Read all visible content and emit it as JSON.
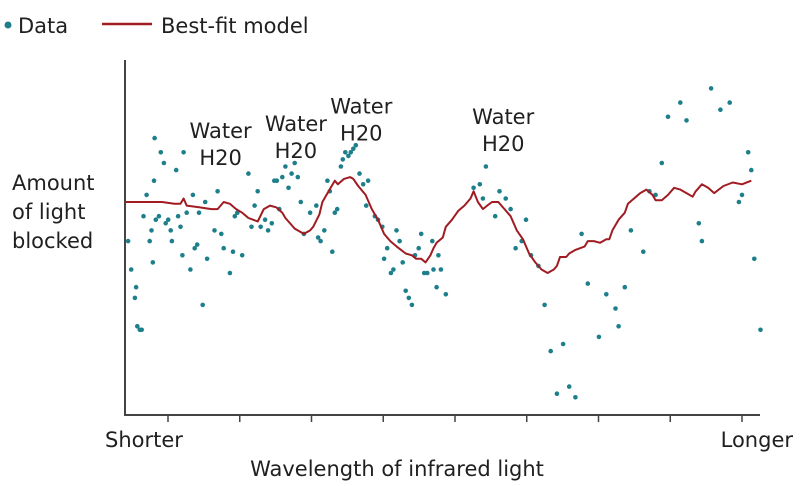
{
  "chart_data": {
    "type": "scatter",
    "title": "",
    "xlabel": "Wavelength of infrared light",
    "ylabel": [
      "Amount",
      "of light",
      "blocked"
    ],
    "x_tick_labels": {
      "start": "Shorter",
      "end": "Longer"
    },
    "xlim": [
      0,
      1
    ],
    "ylim": [
      0,
      1
    ],
    "x_tick_count": 9,
    "grid": false,
    "legend_position": "top-left",
    "legend": [
      {
        "name": "Data",
        "marker": "dot",
        "color": "#1e7f8c"
      },
      {
        "name": "Best-fit model",
        "marker": "line",
        "color": "#a01c22"
      }
    ],
    "annotations": [
      {
        "lines": [
          "Water",
          "H20"
        ],
        "x": 0.155,
        "y": 0.78
      },
      {
        "lines": [
          "Water",
          "H20"
        ],
        "x": 0.277,
        "y": 0.8
      },
      {
        "lines": [
          "Water",
          "H20"
        ],
        "x": 0.383,
        "y": 0.85
      },
      {
        "lines": [
          "Water",
          "H20"
        ],
        "x": 0.613,
        "y": 0.82
      }
    ],
    "series": [
      {
        "name": "Data",
        "type": "scatter",
        "points": [
          [
            0.005,
            0.49
          ],
          [
            0.01,
            0.41
          ],
          [
            0.016,
            0.33
          ],
          [
            0.018,
            0.36
          ],
          [
            0.02,
            0.25
          ],
          [
            0.024,
            0.24
          ],
          [
            0.027,
            0.24
          ],
          [
            0.03,
            0.56
          ],
          [
            0.035,
            0.62
          ],
          [
            0.04,
            0.49
          ],
          [
            0.043,
            0.52
          ],
          [
            0.045,
            0.43
          ],
          [
            0.047,
            0.66
          ],
          [
            0.048,
            0.78
          ],
          [
            0.05,
            0.55
          ],
          [
            0.055,
            0.56
          ],
          [
            0.058,
            0.74
          ],
          [
            0.063,
            0.71
          ],
          [
            0.066,
            0.54
          ],
          [
            0.07,
            0.55
          ],
          [
            0.074,
            0.52
          ],
          [
            0.076,
            0.49
          ],
          [
            0.083,
            0.69
          ],
          [
            0.086,
            0.56
          ],
          [
            0.09,
            0.53
          ],
          [
            0.093,
            0.45
          ],
          [
            0.095,
            0.74
          ],
          [
            0.1,
            0.57
          ],
          [
            0.106,
            0.41
          ],
          [
            0.11,
            0.62
          ],
          [
            0.113,
            0.47
          ],
          [
            0.117,
            0.48
          ],
          [
            0.12,
            0.57
          ],
          [
            0.126,
            0.31
          ],
          [
            0.13,
            0.6
          ],
          [
            0.133,
            0.44
          ],
          [
            0.145,
            0.52
          ],
          [
            0.15,
            0.63
          ],
          [
            0.156,
            0.51
          ],
          [
            0.16,
            0.47
          ],
          [
            0.17,
            0.4
          ],
          [
            0.175,
            0.46
          ],
          [
            0.178,
            0.56
          ],
          [
            0.182,
            0.57
          ],
          [
            0.19,
            0.45
          ],
          [
            0.2,
            0.68
          ],
          [
            0.205,
            0.53
          ],
          [
            0.21,
            0.59
          ],
          [
            0.215,
            0.63
          ],
          [
            0.22,
            0.53
          ],
          [
            0.227,
            0.55
          ],
          [
            0.232,
            0.52
          ],
          [
            0.238,
            0.54
          ],
          [
            0.242,
            0.66
          ],
          [
            0.246,
            0.66
          ],
          [
            0.25,
            0.58
          ],
          [
            0.255,
            0.67
          ],
          [
            0.26,
            0.7
          ],
          [
            0.265,
            0.64
          ],
          [
            0.27,
            0.68
          ],
          [
            0.275,
            0.71
          ],
          [
            0.28,
            0.67
          ],
          [
            0.285,
            0.6
          ],
          [
            0.29,
            0.51
          ],
          [
            0.3,
            0.57
          ],
          [
            0.31,
            0.59
          ],
          [
            0.313,
            0.5
          ],
          [
            0.317,
            0.49
          ],
          [
            0.323,
            0.52
          ],
          [
            0.328,
            0.66
          ],
          [
            0.332,
            0.63
          ],
          [
            0.336,
            0.46
          ],
          [
            0.34,
            0.57
          ],
          [
            0.344,
            0.58
          ],
          [
            0.35,
            0.7
          ],
          [
            0.353,
            0.72
          ],
          [
            0.357,
            0.74
          ],
          [
            0.362,
            0.73
          ],
          [
            0.366,
            0.74
          ],
          [
            0.37,
            0.75
          ],
          [
            0.374,
            0.76
          ],
          [
            0.38,
            0.68
          ],
          [
            0.386,
            0.65
          ],
          [
            0.391,
            0.59
          ],
          [
            0.394,
            0.66
          ],
          [
            0.405,
            0.56
          ],
          [
            0.41,
            0.55
          ],
          [
            0.417,
            0.53
          ],
          [
            0.42,
            0.44
          ],
          [
            0.425,
            0.47
          ],
          [
            0.431,
            0.4
          ],
          [
            0.435,
            0.41
          ],
          [
            0.44,
            0.52
          ],
          [
            0.445,
            0.49
          ],
          [
            0.45,
            0.43
          ],
          [
            0.455,
            0.35
          ],
          [
            0.46,
            0.33
          ],
          [
            0.465,
            0.31
          ],
          [
            0.47,
            0.45
          ],
          [
            0.476,
            0.47
          ],
          [
            0.48,
            0.51
          ],
          [
            0.485,
            0.4
          ],
          [
            0.49,
            0.4
          ],
          [
            0.498,
            0.49
          ],
          [
            0.5,
            0.41
          ],
          [
            0.505,
            0.36
          ],
          [
            0.508,
            0.45
          ],
          [
            0.512,
            0.41
          ],
          [
            0.52,
            0.34
          ],
          [
            0.565,
            0.64
          ],
          [
            0.575,
            0.65
          ],
          [
            0.58,
            0.61
          ],
          [
            0.585,
            0.7
          ],
          [
            0.6,
            0.56
          ],
          [
            0.607,
            0.63
          ],
          [
            0.617,
            0.61
          ],
          [
            0.625,
            0.58
          ],
          [
            0.633,
            0.47
          ],
          [
            0.643,
            0.49
          ],
          [
            0.65,
            0.55
          ],
          [
            0.658,
            0.45
          ],
          [
            0.67,
            0.42
          ],
          [
            0.68,
            0.31
          ],
          [
            0.69,
            0.18
          ],
          [
            0.7,
            0.06
          ],
          [
            0.71,
            0.2
          ],
          [
            0.72,
            0.08
          ],
          [
            0.73,
            0.05
          ],
          [
            0.74,
            0.51
          ],
          [
            0.75,
            0.37
          ],
          [
            0.768,
            0.22
          ],
          [
            0.78,
            0.34
          ],
          [
            0.795,
            0.3
          ],
          [
            0.8,
            0.25
          ],
          [
            0.81,
            0.36
          ],
          [
            0.82,
            0.52
          ],
          [
            0.84,
            0.46
          ],
          [
            0.85,
            0.63
          ],
          [
            0.86,
            0.62
          ],
          [
            0.87,
            0.71
          ],
          [
            0.88,
            0.84
          ],
          [
            0.9,
            0.88
          ],
          [
            0.91,
            0.83
          ],
          [
            0.93,
            0.54
          ],
          [
            0.935,
            0.49
          ],
          [
            0.95,
            0.92
          ],
          [
            0.965,
            0.86
          ],
          [
            0.98,
            0.88
          ],
          [
            0.995,
            0.6
          ],
          [
            1.0,
            0.62
          ],
          [
            1.01,
            0.74
          ],
          [
            1.015,
            0.69
          ],
          [
            1.02,
            0.44
          ],
          [
            1.03,
            0.24
          ]
        ]
      },
      {
        "name": "Best-fit model",
        "type": "line",
        "points": [
          [
            0,
            0.6
          ],
          [
            0.03,
            0.6
          ],
          [
            0.06,
            0.6
          ],
          [
            0.08,
            0.595
          ],
          [
            0.09,
            0.595
          ],
          [
            0.095,
            0.61
          ],
          [
            0.1,
            0.59
          ],
          [
            0.12,
            0.585
          ],
          [
            0.14,
            0.58
          ],
          [
            0.15,
            0.58
          ],
          [
            0.16,
            0.6
          ],
          [
            0.17,
            0.595
          ],
          [
            0.18,
            0.58
          ],
          [
            0.19,
            0.57
          ],
          [
            0.2,
            0.555
          ],
          [
            0.215,
            0.545
          ],
          [
            0.225,
            0.58
          ],
          [
            0.235,
            0.59
          ],
          [
            0.245,
            0.585
          ],
          [
            0.255,
            0.57
          ],
          [
            0.26,
            0.555
          ],
          [
            0.275,
            0.525
          ],
          [
            0.29,
            0.51
          ],
          [
            0.3,
            0.52
          ],
          [
            0.305,
            0.53
          ],
          [
            0.315,
            0.565
          ],
          [
            0.32,
            0.6
          ],
          [
            0.33,
            0.63
          ],
          [
            0.34,
            0.66
          ],
          [
            0.345,
            0.65
          ],
          [
            0.355,
            0.665
          ],
          [
            0.365,
            0.67
          ],
          [
            0.37,
            0.665
          ],
          [
            0.378,
            0.645
          ],
          [
            0.39,
            0.62
          ],
          [
            0.4,
            0.58
          ],
          [
            0.41,
            0.55
          ],
          [
            0.42,
            0.51
          ],
          [
            0.43,
            0.49
          ],
          [
            0.44,
            0.475
          ],
          [
            0.455,
            0.455
          ],
          [
            0.465,
            0.45
          ],
          [
            0.472,
            0.44
          ],
          [
            0.48,
            0.44
          ],
          [
            0.487,
            0.43
          ],
          [
            0.495,
            0.45
          ],
          [
            0.5,
            0.47
          ],
          [
            0.505,
            0.485
          ],
          [
            0.515,
            0.5
          ],
          [
            0.52,
            0.53
          ],
          [
            0.53,
            0.55
          ],
          [
            0.54,
            0.575
          ],
          [
            0.55,
            0.59
          ],
          [
            0.56,
            0.61
          ],
          [
            0.565,
            0.63
          ],
          [
            0.572,
            0.6
          ],
          [
            0.58,
            0.58
          ],
          [
            0.587,
            0.59
          ],
          [
            0.595,
            0.6
          ],
          [
            0.605,
            0.6
          ],
          [
            0.615,
            0.58
          ],
          [
            0.625,
            0.56
          ],
          [
            0.635,
            0.52
          ],
          [
            0.645,
            0.495
          ],
          [
            0.655,
            0.455
          ],
          [
            0.665,
            0.43
          ],
          [
            0.675,
            0.41
          ],
          [
            0.685,
            0.4
          ],
          [
            0.695,
            0.41
          ],
          [
            0.7,
            0.42
          ],
          [
            0.705,
            0.445
          ],
          [
            0.715,
            0.445
          ],
          [
            0.72,
            0.455
          ],
          [
            0.73,
            0.465
          ],
          [
            0.745,
            0.475
          ],
          [
            0.75,
            0.49
          ],
          [
            0.76,
            0.49
          ],
          [
            0.77,
            0.485
          ],
          [
            0.78,
            0.495
          ],
          [
            0.785,
            0.495
          ],
          [
            0.79,
            0.52
          ],
          [
            0.8,
            0.55
          ],
          [
            0.81,
            0.57
          ],
          [
            0.815,
            0.595
          ],
          [
            0.825,
            0.61
          ],
          [
            0.835,
            0.625
          ],
          [
            0.845,
            0.635
          ],
          [
            0.855,
            0.62
          ],
          [
            0.86,
            0.605
          ],
          [
            0.87,
            0.605
          ],
          [
            0.88,
            0.62
          ],
          [
            0.89,
            0.64
          ],
          [
            0.9,
            0.635
          ],
          [
            0.91,
            0.625
          ],
          [
            0.92,
            0.615
          ],
          [
            0.925,
            0.63
          ],
          [
            0.935,
            0.65
          ],
          [
            0.945,
            0.64
          ],
          [
            0.955,
            0.625
          ],
          [
            0.97,
            0.645
          ],
          [
            0.985,
            0.655
          ],
          [
            1.0,
            0.65
          ],
          [
            1.015,
            0.66
          ]
        ]
      }
    ]
  }
}
